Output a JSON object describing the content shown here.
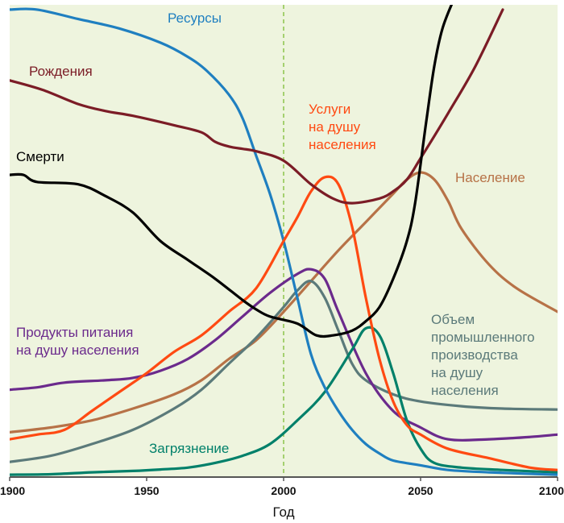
{
  "chart_data": {
    "type": "line",
    "title": "",
    "xlabel": "Год",
    "ylabel": "",
    "xlim": [
      1900,
      2100
    ],
    "ylim": [
      0,
      100
    ],
    "x_ticks": [
      1900,
      1950,
      2000,
      2050,
      2100
    ],
    "x_tick_labels": [
      "1900",
      "1950",
      "2000",
      "2050",
      "2100"
    ],
    "grid": false,
    "marker_line": {
      "x": 2000,
      "style": "dashed",
      "color": "#8bc34a"
    },
    "background": "#eef4de",
    "series": [
      {
        "id": "resources",
        "label_lines": [
          "Ресурсы"
        ],
        "color": "#1f7fc0",
        "points": [
          [
            1900,
            99
          ],
          [
            1910,
            99
          ],
          [
            1925,
            97
          ],
          [
            1940,
            95
          ],
          [
            1955,
            92
          ],
          [
            1965,
            89
          ],
          [
            1972,
            86
          ],
          [
            1980,
            81
          ],
          [
            1985,
            76
          ],
          [
            1990,
            68
          ],
          [
            1995,
            60
          ],
          [
            2000,
            50
          ],
          [
            2005,
            38
          ],
          [
            2010,
            26
          ],
          [
            2015,
            19
          ],
          [
            2020,
            14
          ],
          [
            2025,
            10
          ],
          [
            2030,
            7
          ],
          [
            2035,
            5
          ],
          [
            2040,
            3.5
          ],
          [
            2050,
            2.5
          ],
          [
            2060,
            1.5
          ],
          [
            2075,
            1
          ],
          [
            2100,
            0.5
          ]
        ]
      },
      {
        "id": "births",
        "label_lines": [
          "Рождения"
        ],
        "color": "#7b1c26",
        "points": [
          [
            1900,
            84
          ],
          [
            1912,
            82
          ],
          [
            1925,
            79
          ],
          [
            1935,
            77.5
          ],
          [
            1945,
            76.5
          ],
          [
            1960,
            74.5
          ],
          [
            1970,
            73
          ],
          [
            1975,
            71
          ],
          [
            1980,
            70
          ],
          [
            1985,
            69.5
          ],
          [
            1990,
            69
          ],
          [
            2000,
            67
          ],
          [
            2010,
            62
          ],
          [
            2018,
            59
          ],
          [
            2025,
            58
          ],
          [
            2035,
            59
          ],
          [
            2040,
            60.5
          ],
          [
            2045,
            63
          ],
          [
            2050,
            67.5
          ],
          [
            2060,
            77
          ],
          [
            2070,
            87
          ],
          [
            2080,
            99
          ]
        ]
      },
      {
        "id": "deaths",
        "label_lines": [
          "Смерти"
        ],
        "color": "#000000",
        "points": [
          [
            1900,
            64
          ],
          [
            1905,
            64
          ],
          [
            1910,
            62.5
          ],
          [
            1925,
            62
          ],
          [
            1935,
            59.5
          ],
          [
            1945,
            56
          ],
          [
            1955,
            50
          ],
          [
            1965,
            46
          ],
          [
            1975,
            42
          ],
          [
            1985,
            37.5
          ],
          [
            1990,
            35.5
          ],
          [
            1995,
            34
          ],
          [
            2005,
            32.5
          ],
          [
            2012,
            30
          ],
          [
            2018,
            30
          ],
          [
            2025,
            31
          ],
          [
            2030,
            33
          ],
          [
            2035,
            36
          ],
          [
            2040,
            42
          ],
          [
            2045,
            50
          ],
          [
            2048,
            58
          ],
          [
            2052,
            75
          ],
          [
            2055,
            87
          ],
          [
            2058,
            95
          ],
          [
            2062,
            101
          ]
        ]
      },
      {
        "id": "services",
        "label_lines": [
          "Услуги",
          "на душу",
          "населения"
        ],
        "color": "#ff4a12",
        "points": [
          [
            1900,
            8
          ],
          [
            1910,
            9
          ],
          [
            1920,
            10
          ],
          [
            1930,
            14
          ],
          [
            1940,
            18
          ],
          [
            1950,
            22
          ],
          [
            1960,
            26.5
          ],
          [
            1970,
            30
          ],
          [
            1980,
            35
          ],
          [
            1990,
            40
          ],
          [
            2000,
            50
          ],
          [
            2005,
            55
          ],
          [
            2010,
            60.5
          ],
          [
            2015,
            63.5
          ],
          [
            2020,
            62
          ],
          [
            2025,
            53
          ],
          [
            2030,
            38
          ],
          [
            2035,
            25
          ],
          [
            2040,
            16
          ],
          [
            2045,
            11
          ],
          [
            2050,
            9
          ],
          [
            2060,
            6
          ],
          [
            2075,
            4
          ],
          [
            2090,
            2
          ],
          [
            2100,
            1.5
          ]
        ]
      },
      {
        "id": "population",
        "label_lines": [
          "Население"
        ],
        "color": "#b77247",
        "points": [
          [
            1900,
            9.5
          ],
          [
            1915,
            10.5
          ],
          [
            1930,
            12
          ],
          [
            1945,
            14.5
          ],
          [
            1960,
            17.5
          ],
          [
            1970,
            20.5
          ],
          [
            1980,
            25
          ],
          [
            1990,
            29
          ],
          [
            2000,
            35
          ],
          [
            2010,
            41.5
          ],
          [
            2020,
            48
          ],
          [
            2030,
            54
          ],
          [
            2040,
            60
          ],
          [
            2045,
            63
          ],
          [
            2050,
            64.5
          ],
          [
            2055,
            63
          ],
          [
            2060,
            58.5
          ],
          [
            2065,
            52.5
          ],
          [
            2075,
            45
          ],
          [
            2085,
            40
          ],
          [
            2100,
            35
          ]
        ]
      },
      {
        "id": "food",
        "label_lines": [
          "Продукты питания",
          "на душу населения"
        ],
        "color": "#6b2a8c",
        "points": [
          [
            1900,
            18.5
          ],
          [
            1910,
            19
          ],
          [
            1920,
            20
          ],
          [
            1935,
            20.5
          ],
          [
            1945,
            21
          ],
          [
            1955,
            22.5
          ],
          [
            1965,
            25
          ],
          [
            1975,
            29
          ],
          [
            1985,
            34
          ],
          [
            1995,
            39
          ],
          [
            2005,
            43
          ],
          [
            2010,
            44
          ],
          [
            2015,
            42
          ],
          [
            2020,
            35
          ],
          [
            2030,
            22
          ],
          [
            2040,
            14
          ],
          [
            2050,
            10.5
          ],
          [
            2060,
            8
          ],
          [
            2075,
            8
          ],
          [
            2090,
            8.5
          ],
          [
            2100,
            9
          ]
        ]
      },
      {
        "id": "industry",
        "label_lines": [
          "Объем",
          "промышленного",
          "производства",
          "на душу",
          "населения"
        ],
        "color": "#5b7a7a",
        "points": [
          [
            1900,
            3.2
          ],
          [
            1915,
            4.5
          ],
          [
            1930,
            7
          ],
          [
            1945,
            10
          ],
          [
            1960,
            14.5
          ],
          [
            1970,
            18.5
          ],
          [
            1980,
            24
          ],
          [
            1990,
            29.5
          ],
          [
            2000,
            36
          ],
          [
            2005,
            39.5
          ],
          [
            2010,
            41.5
          ],
          [
            2015,
            38
          ],
          [
            2020,
            31
          ],
          [
            2025,
            24
          ],
          [
            2030,
            20.5
          ],
          [
            2040,
            17.5
          ],
          [
            2050,
            16
          ],
          [
            2065,
            15
          ],
          [
            2080,
            14.5
          ],
          [
            2100,
            14.3
          ]
        ]
      },
      {
        "id": "pollution",
        "label_lines": [
          "Загрязнение"
        ],
        "color": "#00806a",
        "points": [
          [
            1900,
            0.5
          ],
          [
            1915,
            0.6
          ],
          [
            1930,
            1
          ],
          [
            1945,
            1.3
          ],
          [
            1955,
            1.6
          ],
          [
            1965,
            2
          ],
          [
            1975,
            3
          ],
          [
            1985,
            4.5
          ],
          [
            1995,
            7
          ],
          [
            2005,
            12
          ],
          [
            2015,
            18
          ],
          [
            2025,
            27
          ],
          [
            2030,
            31.5
          ],
          [
            2035,
            30
          ],
          [
            2040,
            22
          ],
          [
            2045,
            12
          ],
          [
            2050,
            6
          ],
          [
            2055,
            3
          ],
          [
            2065,
            2
          ],
          [
            2080,
            1.5
          ],
          [
            2100,
            1
          ]
        ]
      }
    ]
  }
}
